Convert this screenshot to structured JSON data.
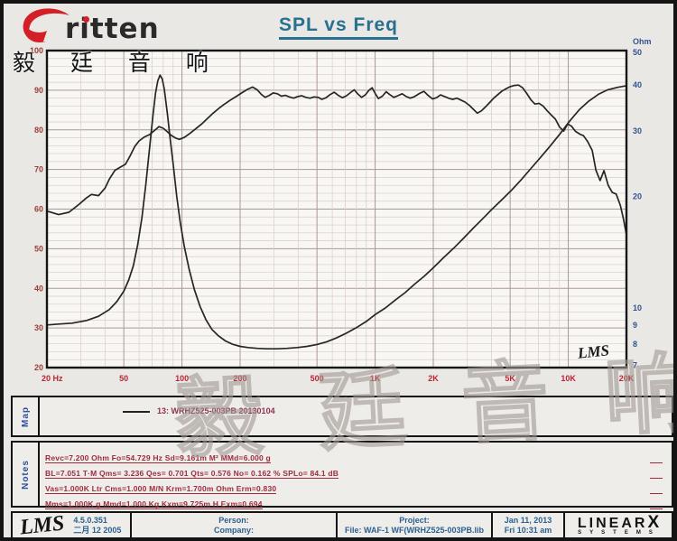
{
  "title": "SPL vs Freq",
  "logo": {
    "brand": "ritten",
    "cn": "毅 廷 音 响"
  },
  "watermark": "毅 廷 音 响",
  "chart": {
    "corner_mark": "LMS"
  },
  "chart_data": {
    "type": "line",
    "title": "SPL vs Freq",
    "grid": true,
    "x_axis": {
      "scale": "log",
      "min": 20,
      "max": 20000,
      "tick_values": [
        20,
        50,
        100,
        200,
        500,
        1000,
        2000,
        5000,
        10000,
        20000
      ],
      "tick_labels": [
        "20 Hz",
        "50",
        "100",
        "200",
        "500",
        "1K",
        "2K",
        "5K",
        "10K",
        "20K"
      ]
    },
    "y_left_axis": {
      "scale": "linear",
      "min": 20,
      "max": 100,
      "minor_step": 2,
      "tick_values": [
        100,
        90,
        80,
        70,
        60,
        50,
        40,
        30,
        20
      ]
    },
    "y_right_axis": {
      "scale": "log",
      "unit_label": "Ohm",
      "tick_values": [
        50,
        40,
        30,
        20,
        10,
        9,
        8,
        7
      ]
    },
    "series": [
      {
        "name": "13: WRHZ525-003PB 20130104 (SPL dB)",
        "axis": "left",
        "color": "#262626",
        "points": [
          [
            20,
            59.5
          ],
          [
            23,
            58.6
          ],
          [
            26,
            59.2
          ],
          [
            29,
            61
          ],
          [
            32,
            62.8
          ],
          [
            34,
            63.7
          ],
          [
            37,
            63.4
          ],
          [
            40,
            65.3
          ],
          [
            42,
            67.5
          ],
          [
            45,
            69.8
          ],
          [
            48,
            70.6
          ],
          [
            51,
            71.3
          ],
          [
            54,
            73.5
          ],
          [
            57,
            75.8
          ],
          [
            60,
            77.2
          ],
          [
            64,
            78.2
          ],
          [
            68,
            78.8
          ],
          [
            72,
            79.8
          ],
          [
            76,
            80.8
          ],
          [
            80,
            80.4
          ],
          [
            84,
            79.5
          ],
          [
            88,
            78.6
          ],
          [
            93,
            77.9
          ],
          [
            97,
            77.6
          ],
          [
            103,
            78.1
          ],
          [
            110,
            79.1
          ],
          [
            118,
            80.3
          ],
          [
            126,
            81.4
          ],
          [
            135,
            82.8
          ],
          [
            145,
            84.2
          ],
          [
            155,
            85.4
          ],
          [
            165,
            86.4
          ],
          [
            178,
            87.5
          ],
          [
            192,
            88.5
          ],
          [
            205,
            89.4
          ],
          [
            218,
            90.2
          ],
          [
            232,
            90.8
          ],
          [
            245,
            90.1
          ],
          [
            258,
            88.9
          ],
          [
            270,
            88.2
          ],
          [
            283,
            88.7
          ],
          [
            297,
            89.3
          ],
          [
            312,
            89.1
          ],
          [
            327,
            88.5
          ],
          [
            343,
            88.7
          ],
          [
            360,
            88.3
          ],
          [
            378,
            88
          ],
          [
            397,
            88.4
          ],
          [
            417,
            88.6
          ],
          [
            438,
            88.2
          ],
          [
            460,
            88
          ],
          [
            483,
            88.3
          ],
          [
            507,
            88.2
          ],
          [
            530,
            87.7
          ],
          [
            557,
            88.1
          ],
          [
            585,
            88.9
          ],
          [
            614,
            89.5
          ],
          [
            645,
            88.7
          ],
          [
            677,
            88.1
          ],
          [
            711,
            88.6
          ],
          [
            746,
            89.4
          ],
          [
            780,
            90.1
          ],
          [
            815,
            89
          ],
          [
            850,
            88.2
          ],
          [
            890,
            88.8
          ],
          [
            930,
            90
          ],
          [
            965,
            90.6
          ],
          [
            1000,
            89.2
          ],
          [
            1040,
            87.9
          ],
          [
            1090,
            88.5
          ],
          [
            1140,
            89.6
          ],
          [
            1190,
            88.9
          ],
          [
            1250,
            88.2
          ],
          [
            1310,
            88.6
          ],
          [
            1380,
            89.1
          ],
          [
            1450,
            88.4
          ],
          [
            1520,
            88
          ],
          [
            1600,
            88.4
          ],
          [
            1700,
            89.2
          ],
          [
            1790,
            89.7
          ],
          [
            1880,
            88.7
          ],
          [
            1980,
            87.8
          ],
          [
            2080,
            88.1
          ],
          [
            2180,
            88.8
          ],
          [
            2290,
            88.4
          ],
          [
            2400,
            88
          ],
          [
            2520,
            87.7
          ],
          [
            2650,
            88
          ],
          [
            2780,
            87.5
          ],
          [
            2920,
            87
          ],
          [
            3070,
            86.2
          ],
          [
            3220,
            85.2
          ],
          [
            3380,
            84.2
          ],
          [
            3550,
            84.8
          ],
          [
            3730,
            85.8
          ],
          [
            3920,
            86.9
          ],
          [
            4110,
            88
          ],
          [
            4320,
            88.9
          ],
          [
            4540,
            89.8
          ],
          [
            4770,
            90.4
          ],
          [
            5010,
            90.9
          ],
          [
            5260,
            91.2
          ],
          [
            5520,
            91.3
          ],
          [
            5800,
            90.6
          ],
          [
            6090,
            89.2
          ],
          [
            6400,
            87.6
          ],
          [
            6720,
            86.5
          ],
          [
            7060,
            86.7
          ],
          [
            7410,
            86
          ],
          [
            7780,
            84.8
          ],
          [
            8170,
            83.7
          ],
          [
            8580,
            82.7
          ],
          [
            9010,
            80.7
          ],
          [
            9460,
            79.7
          ],
          [
            9940,
            81.5
          ],
          [
            10400,
            80.9
          ],
          [
            10900,
            79.6
          ],
          [
            11500,
            78.9
          ],
          [
            12000,
            78.5
          ],
          [
            12600,
            77
          ],
          [
            13300,
            74.8
          ],
          [
            13900,
            69.8
          ],
          [
            14600,
            67.2
          ],
          [
            15300,
            69.7
          ],
          [
            16100,
            66
          ],
          [
            16900,
            64.2
          ],
          [
            17700,
            63.8
          ],
          [
            18600,
            60.9
          ],
          [
            19300,
            57.5
          ],
          [
            20000,
            53.5
          ]
        ]
      },
      {
        "name": "13: WRHZ525-003PB 20130104 (Impedance Ohm)",
        "axis": "right",
        "color": "#262626",
        "points": [
          [
            20,
            9
          ],
          [
            23,
            9.05
          ],
          [
            27,
            9.1
          ],
          [
            32,
            9.25
          ],
          [
            37,
            9.5
          ],
          [
            42,
            9.9
          ],
          [
            46,
            10.4
          ],
          [
            50,
            11.1
          ],
          [
            53,
            11.9
          ],
          [
            56,
            13
          ],
          [
            59,
            14.8
          ],
          [
            62,
            17.5
          ],
          [
            65,
            21.5
          ],
          [
            68,
            27
          ],
          [
            71,
            33.5
          ],
          [
            73,
            38
          ],
          [
            75,
            41
          ],
          [
            77,
            42.5
          ],
          [
            79,
            41.5
          ],
          [
            81,
            39
          ],
          [
            84,
            33.5
          ],
          [
            87,
            28.5
          ],
          [
            90,
            24.5
          ],
          [
            94,
            20
          ],
          [
            98,
            17
          ],
          [
            103,
            14.6
          ],
          [
            109,
            12.7
          ],
          [
            116,
            11.2
          ],
          [
            124,
            10.1
          ],
          [
            133,
            9.3
          ],
          [
            143,
            8.75
          ],
          [
            155,
            8.4
          ],
          [
            168,
            8.15
          ],
          [
            183,
            7.98
          ],
          [
            200,
            7.88
          ],
          [
            220,
            7.82
          ],
          [
            245,
            7.78
          ],
          [
            275,
            7.76
          ],
          [
            310,
            7.76
          ],
          [
            350,
            7.78
          ],
          [
            395,
            7.82
          ],
          [
            445,
            7.88
          ],
          [
            500,
            7.97
          ],
          [
            560,
            8.1
          ],
          [
            630,
            8.3
          ],
          [
            710,
            8.55
          ],
          [
            800,
            8.85
          ],
          [
            900,
            9.2
          ],
          [
            1000,
            9.6
          ],
          [
            1130,
            10
          ],
          [
            1270,
            10.5
          ],
          [
            1430,
            11
          ],
          [
            1600,
            11.6
          ],
          [
            1800,
            12.2
          ],
          [
            2020,
            12.9
          ],
          [
            2270,
            13.7
          ],
          [
            2550,
            14.5
          ],
          [
            2860,
            15.4
          ],
          [
            3210,
            16.4
          ],
          [
            3600,
            17.4
          ],
          [
            4040,
            18.5
          ],
          [
            4530,
            19.6
          ],
          [
            5090,
            20.8
          ],
          [
            5710,
            22.2
          ],
          [
            6410,
            23.8
          ],
          [
            7190,
            25.5
          ],
          [
            8070,
            27.4
          ],
          [
            9060,
            29.5
          ],
          [
            10200,
            32
          ],
          [
            11400,
            34.3
          ],
          [
            12800,
            36.2
          ],
          [
            14400,
            37.8
          ],
          [
            16000,
            38.8
          ],
          [
            18000,
            39.4
          ],
          [
            20000,
            39.8
          ]
        ]
      }
    ],
    "legend": {
      "position": "map-band-below-chart",
      "entries": [
        "13: WRHZ525-003PB 20130104"
      ]
    },
    "inner_label": "LMS"
  },
  "map": {
    "label": "Map",
    "legend": "13: WRHZ525-003PB 20130104"
  },
  "notes": {
    "label": "Notes",
    "lines": [
      "Revc=7.200 Ohm  Fo=54.729 Hz  Sd=9.161m M²  MMd=6.000 g",
      "BL=7.051 T·M  Qms= 3.236  Qes= 0.701  Qts= 0.576  No= 0.162 %  SPLo= 84.1 dB",
      "Vas=1.000K Ltr  Cms=1.000 M/N  Krm=1.700m Ohm  Erm=0.830",
      "Mms=1.000K g  Mmd=1.000 Kg  Kxm=9.725m H  Exm=0.694"
    ]
  },
  "footer": {
    "logo": "LMS",
    "version": "4.5.0.351",
    "version_date": "二月 12 2005",
    "person": "Person:",
    "company": "Company:",
    "project": "Project:",
    "file": "File: WAF-1 WF(WRHZ525-003PB.lib",
    "date": "Jan 11, 2013",
    "time": "Fri 10:31 am",
    "brand_main": "LINEAR",
    "brand_x": "X",
    "brand_sub": "SYSTEMS"
  },
  "colors": {
    "title": "#27708f",
    "x_labels": "#bb2433",
    "db_labels": "#9a4038",
    "ohm_labels": "#33538f",
    "notes_text": "#9c2c3c",
    "legend_text": "#8c3150",
    "curve": "#262626",
    "grid_minor": "#dccbc9",
    "grid_major": "#ab9795",
    "plot_bg": "#f8f7f4",
    "page_bg": "#eae8e4"
  }
}
